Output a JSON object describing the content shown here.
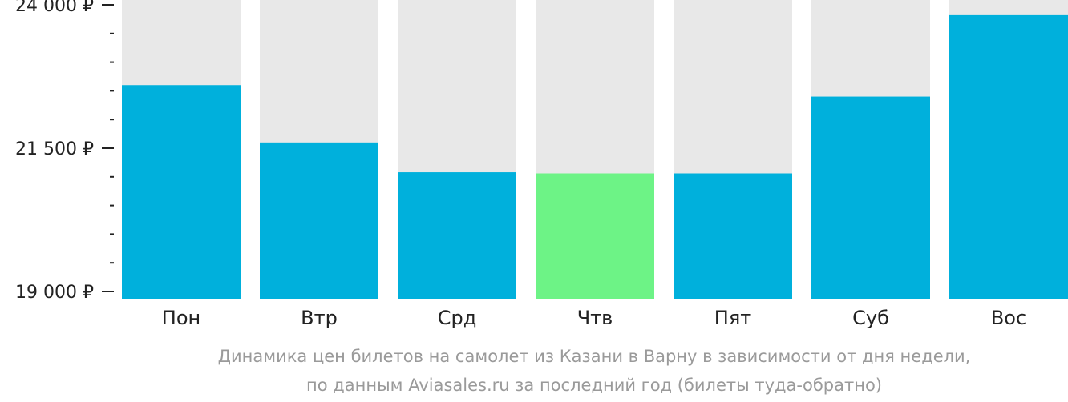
{
  "chart_data": {
    "type": "bar",
    "categories": [
      "Пон",
      "Втр",
      "Срд",
      "Чтв",
      "Пят",
      "Суб",
      "Вос"
    ],
    "values": [
      22600,
      21600,
      21080,
      21060,
      21060,
      22400,
      23820
    ],
    "highlight_index": 3,
    "ylim": [
      19000,
      24000
    ],
    "y_tick_labels": [
      "24 000 ₽",
      "21 500 ₽",
      "19 000 ₽"
    ],
    "y_tick_values": [
      24000,
      21500,
      19000
    ],
    "minor_tick_step": 500,
    "title": "",
    "caption": [
      "Динамика цен билетов на самолет из Казани в Варну в зависимости от дня недели,",
      "по данным Aviasales.ru за последний год (билеты туда-обратно)"
    ],
    "colors": {
      "bar": "#00b0dc",
      "highlight": "#6df386",
      "bar_background": "#e8e8e8",
      "axis": "#222222",
      "caption": "#9a9a9a"
    }
  }
}
